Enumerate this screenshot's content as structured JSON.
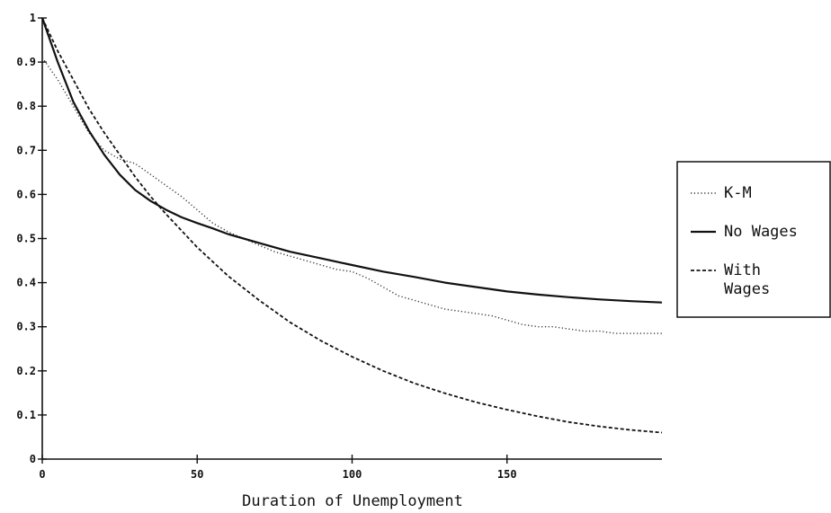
{
  "chart_data": {
    "type": "line",
    "title": "",
    "xlabel": "Duration of Unemployment",
    "ylabel": "",
    "xlim": [
      0,
      200
    ],
    "ylim": [
      0,
      1
    ],
    "x_ticks": [
      "0",
      "50",
      "100",
      "150"
    ],
    "x_tick_values": [
      0,
      50,
      100,
      150
    ],
    "y_ticks": [
      "0",
      "0.1",
      "0.2",
      "0.3",
      "0.4",
      "0.5",
      "0.6",
      "0.7",
      "0.8",
      "0.9",
      "1"
    ],
    "y_tick_values": [
      0,
      0.1,
      0.2,
      0.3,
      0.4,
      0.5,
      0.6,
      0.7,
      0.8,
      0.9,
      1
    ],
    "grid": false,
    "legend_position": "right",
    "series": [
      {
        "name": "K-M",
        "style": "dotted",
        "color": "#333333",
        "x": [
          0,
          2,
          5,
          10,
          15,
          20,
          25,
          30,
          35,
          40,
          45,
          50,
          55,
          60,
          65,
          70,
          75,
          80,
          85,
          90,
          95,
          100,
          105,
          110,
          115,
          120,
          125,
          130,
          135,
          140,
          145,
          150,
          155,
          160,
          165,
          170,
          175,
          180,
          185,
          190,
          195,
          200
        ],
        "y": [
          0.91,
          0.89,
          0.86,
          0.8,
          0.74,
          0.7,
          0.68,
          0.67,
          0.645,
          0.62,
          0.595,
          0.565,
          0.535,
          0.515,
          0.5,
          0.485,
          0.47,
          0.46,
          0.45,
          0.44,
          0.43,
          0.425,
          0.41,
          0.39,
          0.37,
          0.36,
          0.35,
          0.34,
          0.335,
          0.33,
          0.325,
          0.315,
          0.305,
          0.3,
          0.3,
          0.295,
          0.29,
          0.29,
          0.285,
          0.285,
          0.285,
          0.285
        ]
      },
      {
        "name": "No Wages",
        "style": "solid",
        "color": "#111111",
        "x": [
          0,
          5,
          10,
          15,
          20,
          25,
          30,
          35,
          40,
          45,
          50,
          55,
          60,
          70,
          80,
          90,
          100,
          110,
          120,
          130,
          140,
          150,
          160,
          170,
          180,
          190,
          200
        ],
        "y": [
          1.0,
          0.9,
          0.81,
          0.745,
          0.69,
          0.645,
          0.61,
          0.585,
          0.565,
          0.548,
          0.535,
          0.523,
          0.51,
          0.49,
          0.47,
          0.455,
          0.44,
          0.425,
          0.413,
          0.4,
          0.39,
          0.38,
          0.373,
          0.367,
          0.362,
          0.358,
          0.355
        ]
      },
      {
        "name": "With\nWages",
        "style": "dashed",
        "color": "#111111",
        "x": [
          0,
          5,
          10,
          15,
          20,
          25,
          30,
          35,
          40,
          50,
          60,
          70,
          80,
          90,
          100,
          110,
          120,
          130,
          140,
          150,
          160,
          170,
          180,
          190,
          200
        ],
        "y": [
          1.0,
          0.925,
          0.86,
          0.795,
          0.74,
          0.69,
          0.64,
          0.595,
          0.555,
          0.48,
          0.415,
          0.36,
          0.31,
          0.268,
          0.232,
          0.2,
          0.172,
          0.149,
          0.129,
          0.112,
          0.097,
          0.084,
          0.074,
          0.066,
          0.06
        ]
      }
    ],
    "legend": [
      {
        "label_lines": [
          "K-M"
        ]
      },
      {
        "label_lines": [
          "No Wages"
        ]
      },
      {
        "label_lines": [
          "With",
          "Wages"
        ]
      }
    ]
  }
}
